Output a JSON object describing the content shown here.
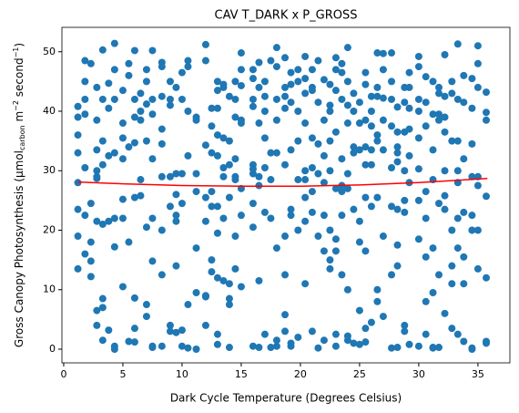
{
  "chart_data": {
    "type": "scatter",
    "title": "CAV T_DARK x P_GROSS",
    "xlabel": "Dark Cycle Temperature (Degrees Celsius)",
    "ylabel": {
      "main": "Gross Canopy Photosynthesis (μmol",
      "sub": "carbon",
      "unit1": " m",
      "sup1": "−2",
      "unit2": " second",
      "sup2": "−1",
      "close": ")"
    },
    "color": "#1f77b4",
    "x": [
      1.2,
      1.2,
      1.2,
      1.2,
      1.2,
      1.2,
      1.2,
      1.2,
      1.8,
      1.8,
      1.8,
      1.8,
      1.8,
      1.8,
      1.8,
      2.3,
      2.3,
      2.3,
      2.3,
      2.3,
      2.8,
      2.8,
      2.8,
      2.8,
      2.8,
      2.8,
      2.8,
      2.8,
      2.8,
      3.3,
      3.3,
      3.3,
      3.3,
      3.3,
      3.3,
      3.3,
      3.3,
      3.8,
      3.8,
      3.8,
      3.8,
      3.8,
      4.3,
      4.3,
      4.3,
      4.3,
      4.3,
      4.3,
      4.3,
      4.3,
      5,
      5,
      5,
      5,
      5,
      5,
      5,
      5.5,
      5.5,
      5.5,
      5.5,
      5.5,
      6,
      6,
      6,
      6,
      6,
      6,
      6,
      6,
      6.5,
      6.5,
      6.5,
      6.5,
      6.5,
      7,
      7,
      7,
      7,
      7,
      7,
      7,
      7.5,
      7.5,
      7.5,
      7.5,
      7.5,
      7.5,
      7.5,
      7.5,
      8.3,
      8.3,
      8.3,
      8.3,
      8.3,
      8.3,
      8.3,
      8.3,
      8.3,
      9,
      9,
      9,
      9,
      9,
      9,
      9,
      9.5,
      9.5,
      9.5,
      9.5,
      9.5,
      9.5,
      9.5,
      10,
      10,
      10,
      10,
      10,
      10,
      10.5,
      10.5,
      10.5,
      10.5,
      10.5,
      10.5,
      11.2,
      11.2,
      11.2,
      11.2,
      11.2,
      11.2,
      11.2,
      12,
      12,
      12,
      12,
      12,
      12,
      12,
      12,
      12.5,
      12.5,
      12.5,
      12.5,
      12.5,
      12.5,
      12.5,
      13,
      13,
      13,
      13,
      13,
      13,
      13,
      13,
      13,
      13,
      13.5,
      13.5,
      13.5,
      13.5,
      13.5,
      13.5,
      13.5,
      14,
      14,
      14,
      14,
      14,
      14,
      14,
      14,
      14.5,
      14.5,
      14.5,
      14.5,
      14.5,
      14.5,
      14.5,
      14.5,
      15,
      15,
      15,
      15,
      15,
      15,
      15,
      15,
      16,
      16,
      16,
      16,
      16,
      16,
      16,
      16,
      16,
      16,
      16.5,
      16.5,
      16.5,
      16.5,
      16.5,
      16.5,
      16.5,
      17,
      17,
      17,
      17,
      17,
      17,
      17,
      17.5,
      17.5,
      17.5,
      17.5,
      17.5,
      18,
      18,
      18,
      18,
      18,
      18,
      18,
      18,
      18.7,
      18.7,
      18.7,
      18.7,
      18.7,
      18.7,
      18.7,
      18.7,
      18.7,
      19.2,
      19.2,
      19.2,
      19.2,
      19.2,
      19.2,
      19.2,
      19.2,
      19.8,
      19.8,
      19.8,
      19.8,
      19.8,
      19.8,
      19.8,
      20.4,
      20.4,
      20.4,
      20.4,
      20.4,
      20.4,
      20.4,
      20.4,
      20.4,
      21,
      21,
      21,
      21,
      21,
      21,
      21,
      21,
      21.5,
      21.5,
      21.5,
      21.5,
      21.5,
      21.5,
      22,
      22,
      22,
      22,
      22,
      22,
      22,
      22.5,
      22.5,
      22.5,
      22.5,
      22.5,
      22.5,
      22.5,
      22.5,
      23,
      23,
      23,
      23,
      23,
      23,
      23,
      23,
      23,
      23.5,
      23.5,
      23.5,
      23.5,
      23.5,
      23.5,
      23.5,
      23.5,
      24,
      24,
      24,
      24,
      24,
      24,
      24,
      24,
      24,
      24.5,
      24.5,
      24.5,
      24.5,
      24.5,
      24.5,
      25,
      25,
      25,
      25,
      25,
      25,
      25,
      25.5,
      25.5,
      25.5,
      25.5,
      25.5,
      25.5,
      25.5,
      25.5,
      25.5,
      26,
      26,
      26,
      26,
      26,
      26,
      26,
      26.5,
      26.5,
      26.5,
      26.5,
      26.5,
      26.5,
      26.5,
      26.5,
      27,
      27,
      27,
      27,
      27,
      27,
      27,
      27.7,
      27.7,
      27.7,
      27.7,
      27.7,
      27.7,
      27.7,
      27.7,
      28.2,
      28.2,
      28.2,
      28.2,
      28.2,
      28.2,
      28.2,
      28.2,
      28.2,
      28.8,
      28.8,
      28.8,
      28.8,
      28.8,
      28.8,
      28.8,
      28.8,
      29.2,
      29.2,
      29.2,
      29.2,
      29.2,
      29.2,
      29.2,
      30,
      30,
      30,
      30,
      30,
      30,
      30,
      30,
      30,
      30.6,
      30.6,
      30.6,
      30.6,
      30.6,
      30.6,
      30.6,
      30.6,
      31.2,
      31.2,
      31.2,
      31.2,
      31.2,
      31.2,
      31.2,
      31.2,
      31.7,
      31.7,
      31.7,
      31.7,
      31.7,
      31.7,
      31.7,
      32.2,
      32.2,
      32.2,
      32.2,
      32.2,
      32.2,
      32.2,
      32.2,
      32.8,
      32.8,
      32.8,
      32.8,
      32.8,
      32.8,
      32.8,
      33.3,
      33.3,
      33.3,
      33.3,
      33.3,
      33.3,
      33.3,
      33.3,
      33.8,
      33.8,
      33.8,
      33.8,
      33.8,
      33.8,
      33.8,
      34.5,
      34.5,
      34.5,
      34.5,
      34.5,
      34.5,
      34.5,
      34.5,
      35,
      35,
      35,
      35,
      35,
      35,
      35,
      35.7,
      35.7,
      35.7,
      35.7,
      35.7,
      35.7,
      35.7
    ],
    "values": [
      40.8,
      39,
      36,
      33,
      28,
      23.5,
      19,
      13.5,
      48.5,
      45,
      42,
      39.5,
      30.5,
      22.5,
      16,
      48,
      24.5,
      18,
      14.8,
      12.2,
      44,
      38.5,
      33.5,
      30,
      29,
      28.7,
      21.5,
      6.5,
      4,
      50.3,
      42,
      35,
      31,
      21,
      8.5,
      7,
      1.5,
      44.7,
      40.5,
      32.5,
      21.5,
      3.2,
      51.4,
      47,
      42,
      33,
      22,
      17.2,
      0.5,
      0,
      43.5,
      38,
      35.5,
      32,
      25.2,
      22,
      10.5,
      48,
      46,
      34,
      18,
      1.3,
      50.2,
      42,
      39,
      34.7,
      25.5,
      8.6,
      3.5,
      1.2,
      43,
      40,
      38.5,
      28.5,
      25.8,
      47,
      45,
      41.2,
      35,
      20.5,
      7.5,
      5.5,
      50.2,
      42,
      39.5,
      32,
      22,
      14.8,
      0.3,
      0.5,
      48.2,
      47.5,
      42.5,
      37,
      34.5,
      29,
      20,
      12.5,
      0.5,
      45,
      42,
      41,
      29,
      24,
      4,
      3,
      44,
      29.5,
      26,
      21.5,
      22.5,
      14,
      2.8,
      46.5,
      42,
      29.5,
      24.5,
      3.2,
      0.5,
      48.5,
      47.5,
      40,
      32.5,
      7.5,
      0.2,
      39,
      38.5,
      29.5,
      26.5,
      17,
      9.5,
      0,
      51.2,
      48.5,
      34.3,
      25.5,
      21.5,
      9,
      4,
      8.8,
      40.5,
      37.5,
      33,
      26.5,
      24,
      15,
      13,
      45,
      43.5,
      40.5,
      36,
      32.5,
      24,
      19.5,
      12,
      2.5,
      0.8,
      44.5,
      44,
      35.5,
      30.5,
      29,
      22,
      11.5,
      42.5,
      35,
      31,
      25.5,
      11,
      8.5,
      7.5,
      0.3,
      45,
      42,
      39,
      32,
      29,
      28.5,
      19,
      13.5,
      49.8,
      47,
      44.3,
      38.5,
      38,
      27,
      22.5,
      10.5,
      47,
      45.5,
      42,
      40.8,
      31,
      30.3,
      29.5,
      24.5,
      20.5,
      0.5,
      48.2,
      44,
      38,
      29,
      27.5,
      11.5,
      0.3,
      45,
      42.5,
      40,
      35.5,
      30.5,
      23,
      2.5,
      48.5,
      33,
      28.5,
      22,
      0.3,
      50.7,
      47.5,
      42,
      38.5,
      33,
      17,
      0.5,
      1.5,
      49,
      44,
      42.5,
      40.5,
      31,
      19,
      12.5,
      5.8,
      3,
      46.5,
      44.5,
      41.5,
      33.5,
      23.5,
      22.5,
      1,
      0.5,
      47,
      45,
      40,
      35,
      28.5,
      20,
      2,
      49.2,
      45.5,
      43,
      38,
      30,
      28.5,
      25.5,
      21.5,
      11,
      47,
      44,
      43.5,
      35.5,
      30.5,
      26.5,
      23,
      3,
      48.5,
      41.5,
      34.5,
      29.5,
      19,
      0.2,
      45.3,
      38.5,
      32.5,
      28,
      22.5,
      16.5,
      1.5,
      44.5,
      41,
      40,
      35,
      30,
      20,
      15,
      13.5,
      49,
      47,
      43.5,
      36.5,
      27,
      18.5,
      16.5,
      2.5,
      0.5,
      48,
      46.5,
      42,
      32,
      27.5,
      26.5,
      22.5,
      12.5,
      50.7,
      45,
      41,
      38,
      29.5,
      27,
      10,
      2.2,
      1.5,
      43,
      40,
      34,
      33,
      23.5,
      1,
      41.5,
      38,
      33.5,
      21.5,
      18,
      6.5,
      0.8,
      46.5,
      44.5,
      38.5,
      34,
      31,
      25.5,
      16.5,
      3.5,
      1.2,
      42.5,
      40,
      37.5,
      33.5,
      31,
      24,
      4.5,
      49.8,
      44,
      42.5,
      36,
      35,
      25.5,
      10,
      8,
      49.7,
      47,
      42.2,
      38.5,
      33.5,
      19,
      5.5,
      49.8,
      45,
      42,
      37.5,
      30.5,
      24,
      12.5,
      0.2,
      40.7,
      36.5,
      34,
      33,
      31.5,
      23.5,
      17.5,
      14,
      0.3,
      44,
      41.5,
      36.5,
      30,
      25,
      23,
      4,
      3,
      46.5,
      44,
      40.5,
      37,
      32.5,
      28,
      0.8,
      49.2,
      47.5,
      42,
      40,
      35.5,
      30.3,
      25,
      18.5,
      0.5,
      45.8,
      41.5,
      37.5,
      26.5,
      22,
      15.5,
      8,
      2.5,
      45,
      39.5,
      33.5,
      28.5,
      17,
      9.5,
      0.2,
      0.3,
      44,
      43,
      39.5,
      38.5,
      24.5,
      12.5,
      0.3,
      49.5,
      42.5,
      39,
      36.5,
      30,
      25.8,
      23.5,
      6,
      45,
      43,
      35,
      20,
      14,
      11,
      3.5,
      51.3,
      42,
      35,
      30,
      28,
      22,
      17,
      2.5,
      46,
      41.5,
      32,
      23,
      15.5,
      11,
      1.3,
      45.5,
      40.5,
      34.5,
      29,
      22.5,
      20,
      0.2,
      0,
      51,
      48,
      44,
      29,
      27.5,
      20,
      13.5,
      43.2,
      39.8,
      38.5,
      25.7,
      12,
      1.3,
      1
    ],
    "fit": {
      "color": "#ff0000",
      "x": [
        1.2,
        5,
        10,
        15,
        20,
        25,
        30,
        35.8
      ],
      "values": [
        28.1,
        27.8,
        27.5,
        27.4,
        27.4,
        27.6,
        28,
        28.7
      ]
    },
    "xlim": [
      -0.15,
      37.7
    ],
    "ylim": [
      -2.3,
      54.1
    ],
    "xticks": [
      0,
      5,
      10,
      15,
      20,
      25,
      30,
      35
    ],
    "yticks": [
      0,
      10,
      20,
      30,
      40,
      50
    ]
  }
}
